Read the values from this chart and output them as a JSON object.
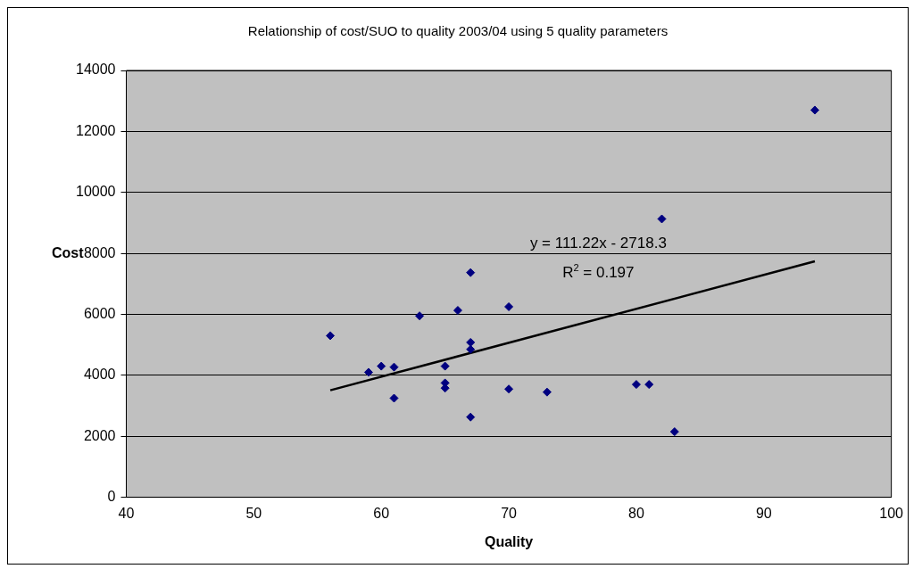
{
  "chart_data": {
    "type": "scatter",
    "title": "Relationship of cost/SUO to quality 2003/04 using 5 quality parameters",
    "xlabel": "Quality",
    "ylabel": "Cost",
    "series": [
      {
        "type": "scatter",
        "color": "#000080",
        "marker": "diamond",
        "x": [
          56,
          59,
          60,
          61,
          61,
          63,
          65,
          65,
          65,
          66,
          67,
          67,
          67,
          67,
          70,
          70,
          73,
          80,
          81,
          82,
          83,
          94
        ],
        "values": [
          5300,
          4100,
          4300,
          4270,
          3250,
          5950,
          4300,
          3750,
          3580,
          6130,
          7370,
          5080,
          4850,
          2630,
          6250,
          3550,
          3450,
          3700,
          3700,
          9130,
          2150,
          12700
        ]
      },
      {
        "type": "line",
        "color": "#000000",
        "marker": "none",
        "x": [
          56,
          94
        ],
        "values": [
          3510,
          7740
        ]
      }
    ],
    "annotations": [
      "y = 111.22x - 2718.3",
      "R$^{2}$ = 0.197"
    ],
    "xlim": [
      40,
      100
    ],
    "xticks": [
      40,
      50,
      60,
      70,
      80,
      90,
      100
    ],
    "ylim": [
      0,
      14000
    ],
    "yticks": [
      0,
      2000,
      4000,
      6000,
      8000,
      10000,
      12000,
      14000
    ],
    "grid": "y",
    "legend": false
  }
}
